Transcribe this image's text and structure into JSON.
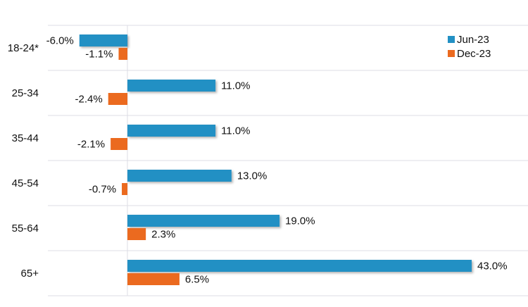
{
  "chart_data": {
    "type": "bar",
    "orientation": "horizontal",
    "title": "",
    "xlabel": "",
    "ylabel": "",
    "categories": [
      "18-24*",
      "25-34",
      "35-44",
      "45-54",
      "55-64",
      "65+"
    ],
    "series": [
      {
        "name": "Jun-23",
        "color": "#2290C4",
        "values": [
          -6.0,
          11.0,
          11.0,
          13.0,
          19.0,
          43.0
        ]
      },
      {
        "name": "Dec-23",
        "color": "#EB6A1F",
        "values": [
          -1.1,
          -2.4,
          -2.1,
          -0.7,
          2.3,
          6.5
        ]
      }
    ],
    "value_format": "percent_1dp",
    "grid": true,
    "legend": "top-right"
  }
}
